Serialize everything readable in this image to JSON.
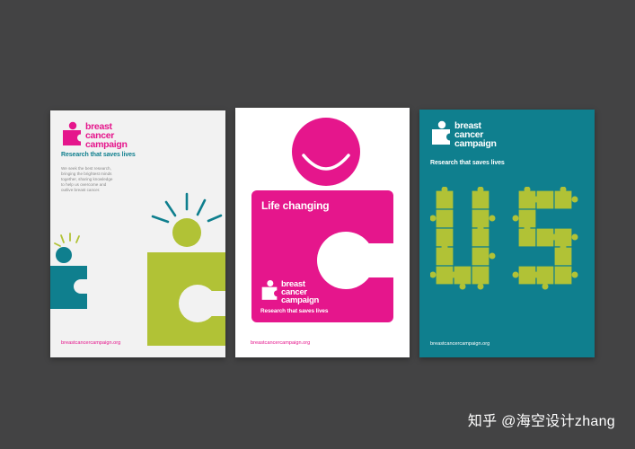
{
  "colors": {
    "background": "#434344",
    "magenta": "#e5168c",
    "lime": "#b1c236",
    "teal": "#0f7f8e",
    "poster_light": "#f2f2f2"
  },
  "posters": [
    {
      "brand": [
        "breast",
        "cancer",
        "campaign"
      ],
      "tagline": "Research that saves lives",
      "body": [
        "We seek the best research,",
        "bringing the brightest minds",
        "together, sharing knowledge",
        "to help us overcome and",
        "outlive breast cancer."
      ],
      "url": "breastcancercampaign.org",
      "icons": [
        "puzzle-person-logo-icon",
        "lime-puzzle-person-icon",
        "teal-puzzle-person-icon"
      ]
    },
    {
      "headline": "Life changing",
      "brand": [
        "breast",
        "cancer",
        "campaign"
      ],
      "tagline": "Research that saves lives",
      "url": "breastcancercampaign.org",
      "icons": [
        "smiling-puzzle-person-icon",
        "puzzle-person-logo-icon"
      ]
    },
    {
      "brand": [
        "breast",
        "cancer",
        "campaign"
      ],
      "tagline": "Research that saves lives",
      "url": "breastcancercampaign.org",
      "icons": [
        "puzzle-person-logo-icon",
        "puzzle-pieces-us-icon"
      ]
    }
  ],
  "watermark": "知乎 @海空设计zhang"
}
